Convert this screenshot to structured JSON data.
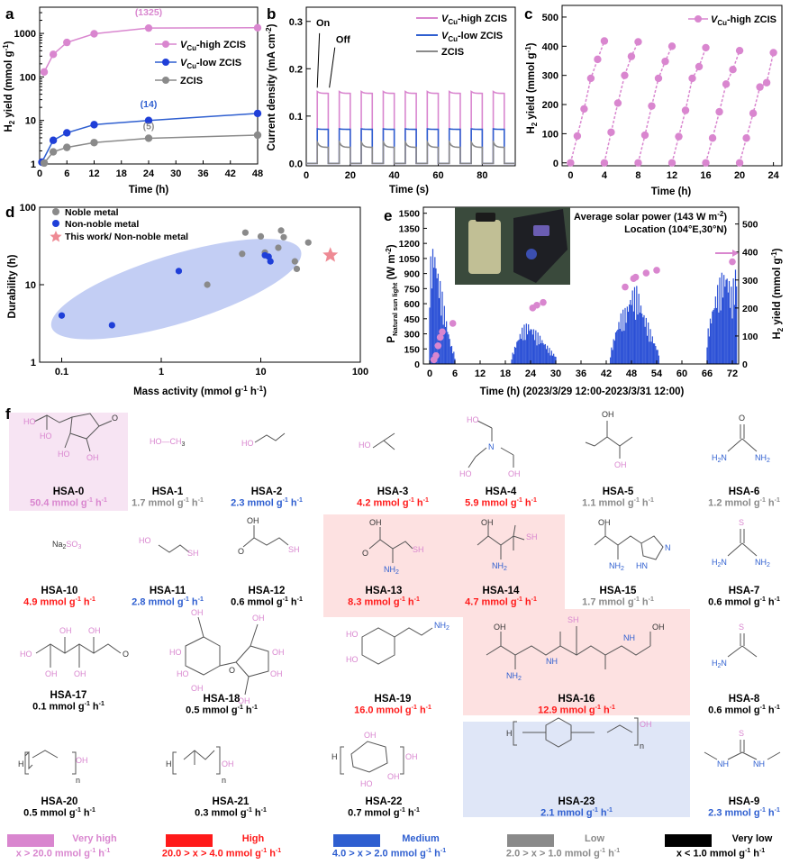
{
  "colors": {
    "very_high": "#d986cf",
    "high": "#ff1a1a",
    "medium": "#2f5fd0",
    "low": "#8a8a8a",
    "very_low": "#000000",
    "pink_bg": "#f7e4f3",
    "red_bg": "#fde1e1",
    "blue_bg": "#dfe6f7",
    "ellipse": "#b9c5f2"
  },
  "panel_labels": {
    "a": "a",
    "b": "b",
    "c": "c",
    "d": "d",
    "e": "e",
    "f": "f"
  },
  "chart_data": [
    {
      "id": "a",
      "type": "line",
      "xlabel": "Time (h)",
      "ylabel": "H2 yield (mmol g-1)",
      "ylabel_main": "H",
      "ylabel_sub": "2",
      "ylabel_rest": " yield (mmol g",
      "ylabel_sup": "-1",
      "ylabel_end": ")",
      "yscale": "log",
      "xlim": [
        0,
        48
      ],
      "ylim": [
        1,
        4000
      ],
      "xticks": [
        0,
        6,
        12,
        18,
        24,
        30,
        36,
        42,
        48
      ],
      "yticks": [
        1,
        10,
        100,
        1000
      ],
      "ytick_labels": [
        "1",
        "10",
        "100",
        "1000"
      ],
      "series": [
        {
          "name": "VCu-high ZCIS",
          "legend_v": "V",
          "legend_sub": "Cu",
          "legend_rest": "-high ZCIS",
          "color": "#d986cf",
          "x": [
            1,
            3,
            6,
            12,
            24,
            48
          ],
          "values": [
            130,
            330,
            620,
            980,
            1325,
            1350
          ]
        },
        {
          "name": "VCu-low ZCIS",
          "legend_v": "V",
          "legend_sub": "Cu",
          "legend_rest": "-low ZCIS",
          "color": "#2f5fd0",
          "x": [
            0.5,
            3,
            6,
            12,
            24,
            48
          ],
          "values": [
            1.1,
            3.5,
            5.2,
            8,
            10,
            14.5
          ]
        },
        {
          "name": "ZCIS",
          "legend_v": "",
          "legend_sub": "",
          "legend_rest": "ZCIS",
          "color": "#8a8a8a",
          "x": [
            1,
            3,
            6,
            12,
            24,
            48
          ],
          "values": [
            1.05,
            1.9,
            2.4,
            3.1,
            3.9,
            4.6
          ]
        }
      ],
      "annotations": [
        {
          "text": "(1325)",
          "x": 24,
          "y": 2600,
          "color": "#d986cf"
        },
        {
          "text": "(14)",
          "x": 24,
          "y": 20,
          "color": "#2f5fd0"
        },
        {
          "text": "(5)",
          "x": 24,
          "y": 6.2,
          "color": "#8a8a8a"
        }
      ]
    },
    {
      "id": "b",
      "type": "line",
      "xlabel": "Time (s)",
      "ylabel": "Current density (mA cm-2)",
      "ylabel_rest": "Current density (mA cm",
      "ylabel_sup": "-2",
      "ylabel_end": ")",
      "xlim": [
        0,
        95
      ],
      "ylim": [
        -0.005,
        0.33
      ],
      "xticks": [
        0,
        20,
        40,
        60,
        80
      ],
      "yticks": [
        0.0,
        0.1,
        0.2,
        0.3
      ],
      "ytick_labels": [
        "0.0",
        "0.1",
        "0.2",
        "0.3"
      ],
      "on_off": {
        "period": 10,
        "first_on": 5,
        "on_duration": 5,
        "cycles": 9
      },
      "series": [
        {
          "name": "VCu-high ZCIS",
          "legend_v": "V",
          "legend_sub": "Cu",
          "legend_rest": "-high ZCIS",
          "color": "#d986cf",
          "on_level": 0.148,
          "peak": 0.152,
          "off_level": 0.0
        },
        {
          "name": "VCu-low ZCIS",
          "legend_v": "V",
          "legend_sub": "Cu",
          "legend_rest": "-low ZCIS",
          "color": "#2f5fd0",
          "on_level": 0.072,
          "peak": 0.073,
          "off_level": 0.0
        },
        {
          "name": "ZCIS",
          "legend_v": "",
          "legend_sub": "",
          "legend_rest": "ZCIS",
          "color": "#8a8a8a",
          "on_level": 0.034,
          "peak": 0.045,
          "off_level": 0.0
        }
      ],
      "annotations": [
        {
          "text": "On",
          "x": 6,
          "y": 0.16
        },
        {
          "text": "Off",
          "x": 11,
          "y": 0.16
        }
      ]
    },
    {
      "id": "c",
      "type": "scatter",
      "xlabel": "Time (h)",
      "ylabel": "H2 yield (mmol g-1)",
      "ylabel_main": "H",
      "ylabel_sub": "2",
      "ylabel_rest": " yield (mmol g",
      "ylabel_sup": "-1",
      "ylabel_end": ")",
      "xlim": [
        -1,
        25
      ],
      "ylim": [
        -10,
        540
      ],
      "xticks": [
        0,
        4,
        8,
        12,
        16,
        20,
        24
      ],
      "yticks": [
        0,
        100,
        200,
        300,
        400,
        500
      ],
      "series": [
        {
          "name": "VCu-high ZCIS",
          "legend_v": "V",
          "legend_sub": "Cu",
          "legend_rest": "-high ZCIS",
          "color": "#d986cf",
          "cycles": [
            {
              "x": [
                0,
                0.8,
                1.6,
                2.4,
                3.2,
                4.0
              ],
              "values": [
                0,
                92,
                185,
                290,
                355,
                418
              ]
            },
            {
              "x": [
                4,
                4.8,
                5.6,
                6.4,
                7.2,
                8.0
              ],
              "values": [
                0,
                105,
                205,
                300,
                365,
                415
              ]
            },
            {
              "x": [
                8,
                8.8,
                9.6,
                10.4,
                11.2,
                12.0
              ],
              "values": [
                0,
                95,
                195,
                290,
                348,
                400
              ]
            },
            {
              "x": [
                12,
                12.8,
                13.6,
                14.4,
                15.2,
                16.0
              ],
              "values": [
                0,
                90,
                180,
                290,
                330,
                395
              ]
            },
            {
              "x": [
                16,
                16.8,
                17.6,
                18.4,
                19.2,
                20.0
              ],
              "values": [
                0,
                85,
                175,
                270,
                320,
                385
              ]
            },
            {
              "x": [
                20,
                20.8,
                21.6,
                22.4,
                23.2,
                24.0
              ],
              "values": [
                0,
                85,
                170,
                260,
                275,
                378
              ]
            }
          ]
        }
      ]
    },
    {
      "id": "d",
      "type": "scatter",
      "xlabel": "Mass activity (mmol g-1 h-1)",
      "ylabel": "Durability (h)",
      "xlabel_rest": "Mass activity (mmol g",
      "xlabel_sup1": "-1",
      "xlabel_mid": " h",
      "xlabel_sup2": "-1",
      "xlabel_end": ")",
      "xscale": "log",
      "yscale": "log",
      "xlim": [
        0.06,
        100
      ],
      "ylim": [
        1,
        100
      ],
      "xticks": [
        0.1,
        1,
        10,
        100
      ],
      "xtick_labels": [
        "0.1",
        "1",
        "10",
        "100"
      ],
      "yticks": [
        1,
        10,
        100
      ],
      "ytick_labels": [
        "1",
        "10",
        "100"
      ],
      "series": [
        {
          "name": "Noble metal",
          "color": "#8a8a8a",
          "marker": "circle",
          "x": [
            7,
            10,
            16,
            17,
            15,
            22,
            23,
            30,
            11,
            6.5,
            2.9
          ],
          "values": [
            47,
            42,
            50,
            41,
            30,
            20,
            16,
            35,
            26,
            25,
            10
          ]
        },
        {
          "name": "Non-noble metal",
          "color": "#1f3fd8",
          "marker": "circle",
          "x": [
            0.1,
            0.32,
            1.5,
            11,
            12,
            12.5
          ],
          "values": [
            4,
            3,
            15,
            24,
            23,
            20
          ]
        },
        {
          "name": "This work/ Non-noble metal",
          "color": "#ee8a94",
          "marker": "star",
          "x": [
            50
          ],
          "values": [
            24
          ]
        }
      ],
      "region": "blue ellipse enclosing non-noble metal points"
    },
    {
      "id": "e",
      "type": "bar",
      "xlabel": "Time (h) (2023/3/29 12:00-2023/3/31 12:00)",
      "ylabel_left": "P Natural sun light (W m-2)",
      "ylabel_left_main": "P",
      "ylabel_left_sub": "Natural sun light",
      "ylabel_left_rest": " (W m",
      "ylabel_left_sup": "-2",
      "ylabel_left_end": ")",
      "ylabel_right": "H2 yield (mmol g-1)",
      "ylabel_right_main": "H",
      "ylabel_right_sub": "2",
      "ylabel_right_rest": " yield (mmol g",
      "ylabel_right_sup": "-1",
      "ylabel_right_end": ")",
      "xlim": [
        -1.5,
        73.5
      ],
      "ylim_left": [
        0,
        1560
      ],
      "ylim_right": [
        0,
        560
      ],
      "xticks": [
        0,
        6,
        12,
        18,
        24,
        30,
        36,
        42,
        48,
        54,
        60,
        66,
        72
      ],
      "yticks_left": [
        0,
        150,
        300,
        450,
        600,
        750,
        900,
        1050,
        1200,
        1350,
        1500
      ],
      "yticks_right": [
        0,
        100,
        200,
        300,
        400,
        500
      ],
      "annotations": [
        "Average solar power (143 W m-2)",
        "Location (104°E,30°N)"
      ],
      "annotation_power": "Average solar power (143 W m",
      "annotation_power_sup": "-2",
      "annotation_power_end": ")",
      "annotation_location": "Location (104°E,30°N)",
      "bar_windows": [
        {
          "start": 0,
          "end": 6,
          "peaks": [
            1020,
            1240,
            960,
            720,
            450,
            220,
            90
          ]
        },
        {
          "start": 19.5,
          "end": 30,
          "peaks": [
            80,
            250,
            380,
            420,
            360,
            300,
            220,
            150,
            80
          ]
        },
        {
          "start": 43,
          "end": 54.5,
          "peaks": [
            120,
            350,
            520,
            580,
            760,
            780,
            560,
            420,
            260,
            120
          ]
        },
        {
          "start": 66,
          "end": 73,
          "peaks": [
            300,
            560,
            780,
            920,
            960,
            760,
            1020
          ]
        }
      ],
      "h2_series": {
        "color": "#d986cf",
        "x": [
          1,
          1.5,
          2,
          2.5,
          3,
          5.5,
          24.5,
          25.5,
          27,
          46.5,
          48.5,
          49,
          51.5,
          54,
          72
        ],
        "values": [
          15,
          30,
          65,
          95,
          115,
          145,
          200,
          210,
          220,
          275,
          305,
          310,
          325,
          335,
          365
        ]
      }
    }
  ],
  "panel_f": {
    "molecules": [
      {
        "id": "HSA-0",
        "rate": "50.4 mmol g-1 h-1",
        "rate_main": "50.4 mmol g",
        "tier": "very_high"
      },
      {
        "id": "HSA-1",
        "rate": "1.7 mmol g-1 h-1",
        "rate_main": "1.7 mmol g",
        "tier": "low"
      },
      {
        "id": "HSA-2",
        "rate": "2.3 mmol g-1 h-1",
        "rate_main": "2.3 mmol g",
        "tier": "medium"
      },
      {
        "id": "HSA-3",
        "rate": "4.2 mmol g-1 h-1",
        "rate_main": "4.2 mmol g",
        "tier": "high"
      },
      {
        "id": "HSA-4",
        "rate": "5.9 mmol g-1 h-1",
        "rate_main": "5.9 mmol g",
        "tier": "high"
      },
      {
        "id": "HSA-5",
        "rate": "1.1 mmol g-1 h-1",
        "rate_main": "1.1 mmol g",
        "tier": "low"
      },
      {
        "id": "HSA-6",
        "rate": "1.2 mmol g-1 h-1",
        "rate_main": "1.2 mmol g",
        "tier": "low"
      },
      {
        "id": "HSA-10",
        "rate": "4.9 mmol g-1 h-1",
        "rate_main": "4.9 mmol g",
        "tier": "high"
      },
      {
        "id": "HSA-11",
        "rate": "2.8 mmol g-1 h-1",
        "rate_main": "2.8 mmol g",
        "tier": "medium"
      },
      {
        "id": "HSA-12",
        "rate": "0.6 mmol g-1 h-1",
        "rate_main": "0.6 mmol g",
        "tier": "very_low"
      },
      {
        "id": "HSA-13",
        "rate": "8.3 mmol g-1 h-1",
        "rate_main": "8.3 mmol g",
        "tier": "high"
      },
      {
        "id": "HSA-14",
        "rate": "4.7 mmol g-1 h-1",
        "rate_main": "4.7 mmol g",
        "tier": "high"
      },
      {
        "id": "HSA-15",
        "rate": "1.7 mmol g-1 h-1",
        "rate_main": "1.7 mmol g",
        "tier": "low"
      },
      {
        "id": "HSA-7",
        "rate": "0.6 mmol g-1 h-1",
        "rate_main": "0.6 mmol g",
        "tier": "very_low"
      },
      {
        "id": "HSA-17",
        "rate": "0.1 mmol g-1 h-1",
        "rate_main": "0.1 mmol g",
        "tier": "very_low"
      },
      {
        "id": "HSA-18",
        "rate": "0.5 mmol g-1 h-1",
        "rate_main": "0.5 mmol g",
        "tier": "very_low"
      },
      {
        "id": "HSA-19",
        "rate": "16.0 mmol g-1 h-1",
        "rate_main": "16.0 mmol g",
        "tier": "high"
      },
      {
        "id": "HSA-16",
        "rate": "12.9 mmol g-1 h-1",
        "rate_main": "12.9 mmol g",
        "tier": "high"
      },
      {
        "id": "HSA-8",
        "rate": "0.6 mmol g-1 h-1",
        "rate_main": "0.6 mmol g",
        "tier": "very_low"
      },
      {
        "id": "HSA-20",
        "rate": "0.5 mmol g-1 h-1",
        "rate_main": "0.5 mmol g",
        "tier": "very_low"
      },
      {
        "id": "HSA-21",
        "rate": "0.3 mmol g-1 h-1",
        "rate_main": "0.3 mmol g",
        "tier": "very_low"
      },
      {
        "id": "HSA-22",
        "rate": "0.7 mmol g-1 h-1",
        "rate_main": "0.7 mmol g",
        "tier": "very_low"
      },
      {
        "id": "HSA-23",
        "rate": "2.1 mmol g-1 h-1",
        "rate_main": "2.1 mmol g",
        "tier": "medium"
      },
      {
        "id": "HSA-9",
        "rate": "2.3 mmol g-1 h-1",
        "rate_main": "2.3 mmol g",
        "tier": "medium"
      }
    ],
    "structure_text": {
      "methanol": "HO—CH",
      "methanol_sub": "3",
      "sulfite": "Na",
      "sulfite_sub": "2",
      "sulfite_rest": "SO",
      "sulfite_sub2": "3",
      "OH": "OH",
      "HO": "HO",
      "SH": "SH",
      "NH2": "NH",
      "NH2_sub": "2",
      "H2N": "H",
      "H2N_sub": "2",
      "H2N_rest": "N",
      "N": "N",
      "NH": "NH",
      "HN": "HN",
      "S": "S",
      "O": "O",
      "H": "H",
      "n": "n"
    },
    "legend": [
      {
        "label": "Very high",
        "range": "x > 20.0 mmol g-1 h-1",
        "range_main": "x > 20.0 mmol g",
        "tier": "very_high"
      },
      {
        "label": "High",
        "range": "20.0 > x > 4.0 mmol g-1 h-1",
        "range_main": "20.0 > x > 4.0 mmol g",
        "tier": "high"
      },
      {
        "label": "Medium",
        "range": "4.0 > x > 2.0 mmol g-1 h-1",
        "range_main": "4.0 > x > 2.0 mmol g",
        "tier": "medium"
      },
      {
        "label": "Low",
        "range": "2.0 > x > 1.0 mmol g-1 h-1",
        "range_main": "2.0 > x > 1.0 mmol g",
        "tier": "low"
      },
      {
        "label": "Very low",
        "range": "x < 1.0 mmol g-1 h-1",
        "range_main": "x < 1.0 mmol g",
        "tier": "very_low"
      }
    ],
    "unit_sup1": "-1",
    "unit_mid": " h",
    "unit_sup2": "-1"
  }
}
